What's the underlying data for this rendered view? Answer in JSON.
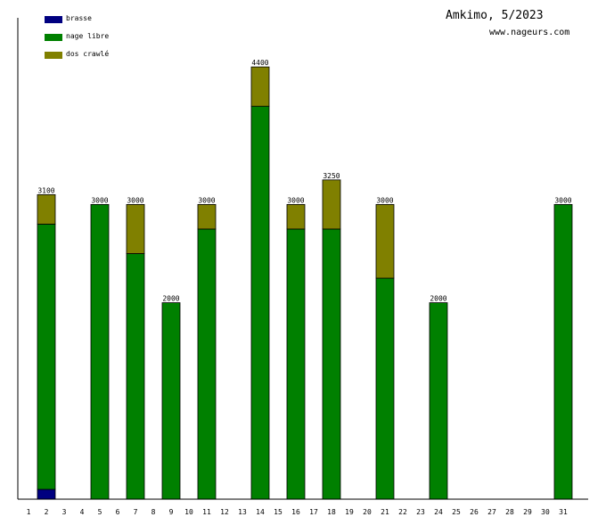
{
  "title": "Amkimo, 5/2023",
  "subtitle": "www.nageurs.com",
  "chart_data": {
    "type": "bar",
    "stacked": true,
    "categories": [
      "1",
      "2",
      "3",
      "4",
      "5",
      "6",
      "7",
      "8",
      "9",
      "10",
      "11",
      "12",
      "13",
      "14",
      "15",
      "16",
      "17",
      "18",
      "19",
      "20",
      "21",
      "22",
      "23",
      "24",
      "25",
      "26",
      "27",
      "28",
      "29",
      "30",
      "31"
    ],
    "series": [
      {
        "name": "brasse",
        "color": "#000080",
        "values": [
          0,
          100,
          0,
          0,
          0,
          0,
          0,
          0,
          0,
          0,
          0,
          0,
          0,
          0,
          0,
          0,
          0,
          0,
          0,
          0,
          0,
          0,
          0,
          0,
          0,
          0,
          0,
          0,
          0,
          0,
          0
        ]
      },
      {
        "name": "nage libre",
        "color": "#008000",
        "values": [
          0,
          2700,
          0,
          0,
          3000,
          0,
          2500,
          0,
          2000,
          0,
          2750,
          0,
          0,
          4000,
          0,
          2750,
          0,
          2750,
          0,
          0,
          2250,
          0,
          0,
          2000,
          0,
          0,
          0,
          0,
          0,
          0,
          3000
        ]
      },
      {
        "name": "dos crawlé",
        "color": "#808000",
        "values": [
          0,
          300,
          0,
          0,
          0,
          0,
          500,
          0,
          0,
          0,
          250,
          0,
          0,
          400,
          0,
          250,
          0,
          500,
          0,
          0,
          750,
          0,
          0,
          0,
          0,
          0,
          0,
          0,
          0,
          0,
          0
        ]
      }
    ],
    "totals": [
      0,
      3100,
      0,
      0,
      3000,
      0,
      3000,
      0,
      2000,
      0,
      3000,
      0,
      0,
      4400,
      0,
      3000,
      0,
      3250,
      0,
      0,
      3000,
      0,
      0,
      2000,
      0,
      0,
      0,
      0,
      0,
      0,
      3000
    ],
    "ylim": [
      0,
      4900
    ],
    "grid": false,
    "legend_position": "top-left"
  }
}
